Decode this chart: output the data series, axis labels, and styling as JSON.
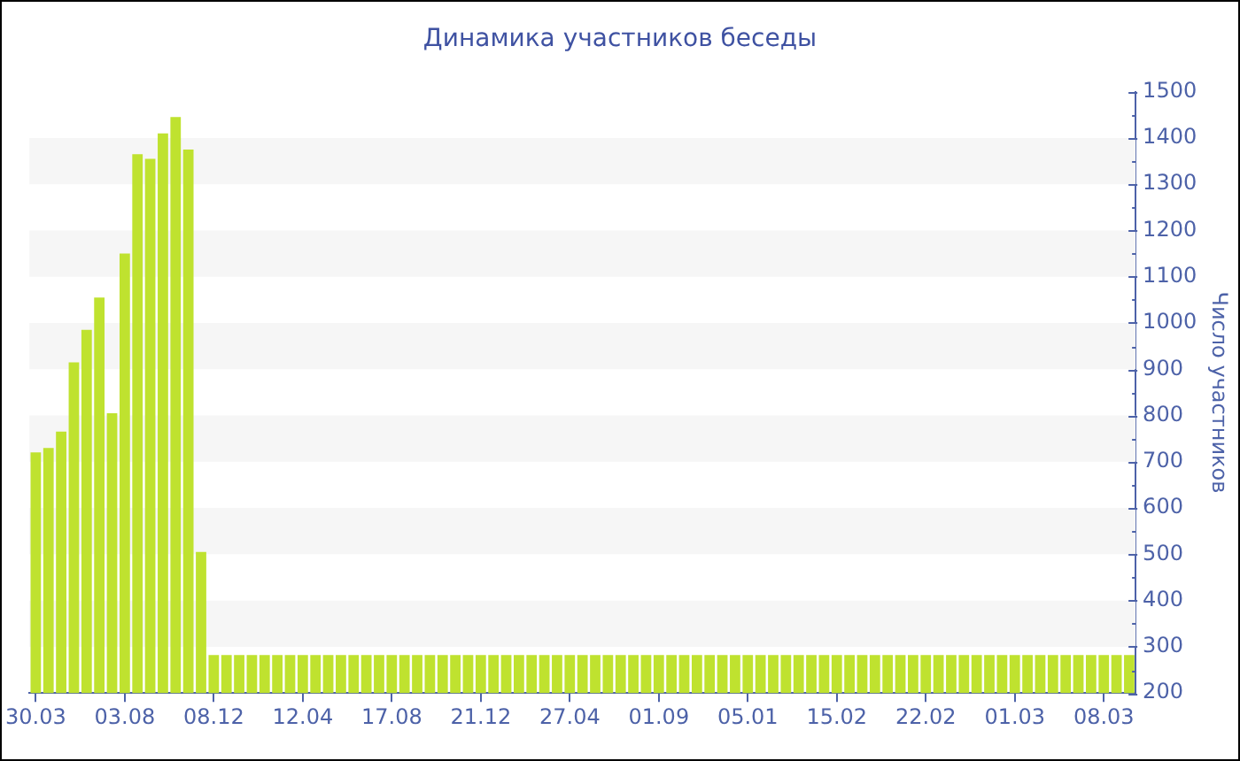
{
  "chart_data": {
    "type": "bar",
    "title": "Динамика участников беседы",
    "ylabel": "Число участников",
    "categories": [
      "30.03",
      null,
      null,
      null,
      null,
      null,
      null,
      "03.08",
      null,
      null,
      null,
      null,
      null,
      null,
      "08.12",
      null,
      null,
      null,
      null,
      null,
      null,
      "12.04",
      null,
      null,
      null,
      null,
      null,
      null,
      "17.08",
      null,
      null,
      null,
      null,
      null,
      null,
      "21.12",
      null,
      null,
      null,
      null,
      null,
      null,
      "27.04",
      null,
      null,
      null,
      null,
      null,
      null,
      "01.09",
      null,
      null,
      null,
      null,
      null,
      null,
      "05.01",
      null,
      null,
      null,
      null,
      null,
      null,
      "15.02",
      null,
      null,
      null,
      null,
      null,
      null,
      "22.02",
      null,
      null,
      null,
      null,
      null,
      null,
      "01.03",
      null,
      null,
      null,
      null,
      null,
      null,
      "08.03",
      null,
      null
    ],
    "values": [
      720,
      730,
      765,
      915,
      985,
      1055,
      805,
      1150,
      1365,
      1355,
      1410,
      1445,
      1375,
      505,
      282,
      282,
      282,
      282,
      282,
      282,
      282,
      282,
      282,
      282,
      282,
      282,
      282,
      282,
      282,
      282,
      282,
      282,
      282,
      282,
      282,
      282,
      282,
      282,
      282,
      282,
      282,
      282,
      282,
      282,
      282,
      282,
      282,
      282,
      282,
      282,
      282,
      282,
      282,
      282,
      282,
      282,
      282,
      282,
      282,
      282,
      282,
      282,
      282,
      282,
      282,
      282,
      282,
      282,
      282,
      282,
      282,
      282,
      282,
      282,
      282,
      282,
      282,
      282,
      282,
      282,
      282,
      282,
      282,
      282,
      282,
      282,
      282
    ],
    "color": "#bfe22f",
    "ylim": [
      200,
      1500
    ],
    "yticks": [
      200,
      {
        "value": 250,
        "label": null
      },
      300,
      {
        "value": 350,
        "label": null
      },
      400,
      {
        "value": 450,
        "label": null
      },
      500,
      {
        "value": 550,
        "label": null
      },
      600,
      {
        "value": 650,
        "label": null
      },
      700,
      {
        "value": 750,
        "label": null
      },
      800,
      {
        "value": 850,
        "label": null
      },
      900,
      {
        "value": 950,
        "label": null
      },
      1000,
      {
        "value": 1050,
        "label": null
      },
      1100,
      {
        "value": 1150,
        "label": null
      },
      1200,
      {
        "value": 1250,
        "label": null
      },
      1300,
      {
        "value": 1350,
        "label": null
      },
      1400,
      {
        "value": 1450,
        "label": null
      },
      1500
    ],
    "bands": [
      {
        "axis": "y",
        "from": 300,
        "to": 400,
        "color": "#f6f6f6"
      },
      {
        "axis": "y",
        "from": 500,
        "to": 600,
        "color": "#f6f6f6"
      },
      {
        "axis": "y",
        "from": 700,
        "to": 800,
        "color": "#f6f6f6"
      },
      {
        "axis": "y",
        "from": 900,
        "to": 1000,
        "color": "#f6f6f6"
      },
      {
        "axis": "y",
        "from": 1100,
        "to": 1200,
        "color": "#f6f6f6"
      },
      {
        "axis": "y",
        "from": 1300,
        "to": 1400,
        "color": "#f6f6f6"
      }
    ],
    "legend": false
  }
}
